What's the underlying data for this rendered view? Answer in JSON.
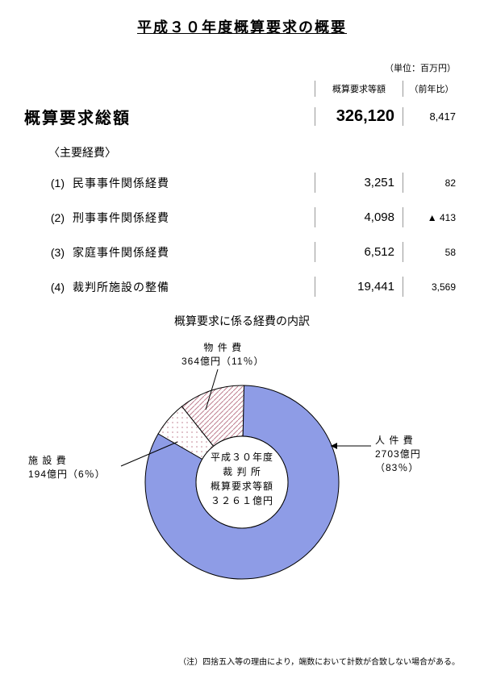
{
  "title": "平成３０年度概算要求の概要",
  "unit_label": "（単位：百万円）",
  "header": {
    "amount_label": "概算要求等額",
    "diff_label": "（前年比）"
  },
  "total": {
    "label": "概算要求総額",
    "amount": "326,120",
    "diff": "8,417"
  },
  "subtitle": "〈主要経費〉",
  "items": [
    {
      "num": "(1)",
      "text": "民事事件関係経費",
      "amount": "3,251",
      "diff": "82"
    },
    {
      "num": "(2)",
      "text": "刑事事件関係経費",
      "amount": "4,098",
      "diff": "▲ 413"
    },
    {
      "num": "(3)",
      "text": "家庭事件関係経費",
      "amount": "6,512",
      "diff": "58"
    },
    {
      "num": "(4)",
      "text": "裁判所施設の整備",
      "amount": "19,441",
      "diff": "3,569"
    }
  ],
  "chart": {
    "title": "概算要求に係る経費の内訳",
    "type": "pie",
    "center_line1": "平成３０年度",
    "center_line2": "裁 判 所",
    "center_line3": "概算要求等額",
    "center_line4": "３２６１億円",
    "slices": [
      {
        "label_line1": "人 件 費",
        "label_line2": "2703億円（83％）",
        "percent": 83,
        "color": "#8e9ce6",
        "pattern": "solid"
      },
      {
        "label_line1": "施 設 費",
        "label_line2": "194億円（6％）",
        "percent": 6,
        "color": "#f8d0d8",
        "pattern": "dots"
      },
      {
        "label_line1": "物 件 費",
        "label_line2": "364億円（11％）",
        "percent": 11,
        "color": "#f0d0d8",
        "pattern": "hatch"
      }
    ],
    "inner_radius": 57,
    "outer_radius": 120,
    "background_color": "#ffffff",
    "stroke_color": "#000000"
  },
  "footnote": "（注）四捨五入等の理由により，端数において計数が合致しない場合がある。"
}
